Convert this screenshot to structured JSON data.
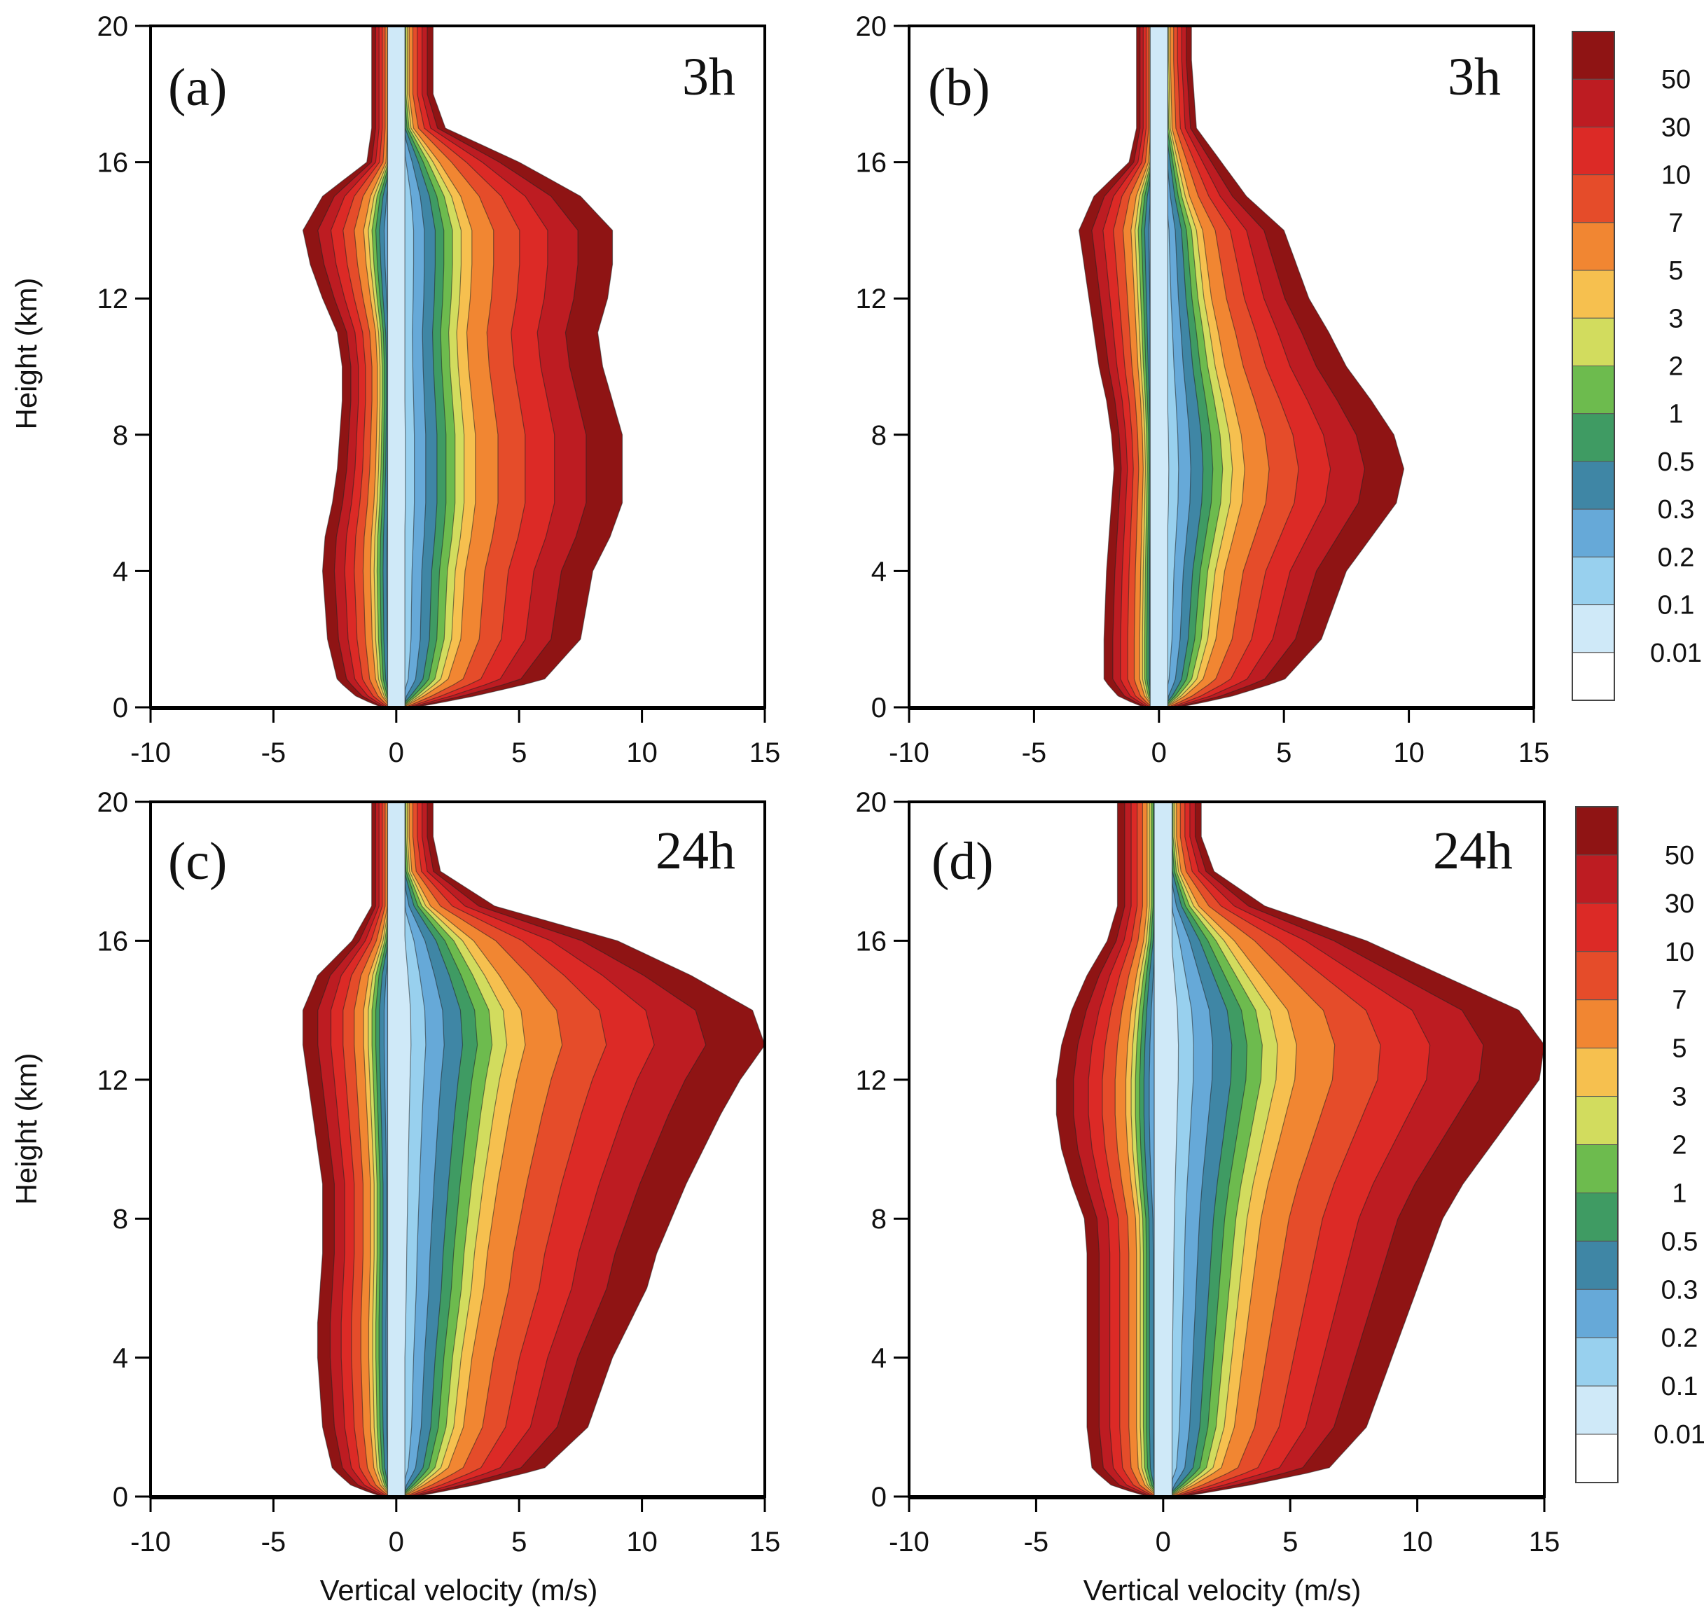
{
  "figure": {
    "x_axis_title": "Vertical velocity (m/s)",
    "y_axis_title": "Height (km)",
    "x_ticks": [
      -10,
      -5,
      0,
      5,
      10,
      15
    ],
    "y_ticks": [
      0,
      4,
      8,
      12,
      16,
      20
    ]
  },
  "chart_data": [
    {
      "type": "heatmap",
      "panel": "(a)",
      "time_label": "3h",
      "xlabel": "",
      "ylabel": "Height (km)",
      "xlim": [
        -10,
        15
      ],
      "ylim": [
        0,
        20
      ],
      "grid": false,
      "profile": {
        "heights": [
          0,
          0.3,
          0.8,
          2,
          4,
          5,
          6,
          7,
          8,
          9,
          10,
          11,
          12,
          13,
          14,
          15,
          16,
          17,
          18,
          19,
          20
        ],
        "left_extent_0_01": [
          -0.6,
          -1.6,
          -2.4,
          -2.8,
          -3.0,
          -2.9,
          -2.6,
          -2.4,
          -2.3,
          -2.2,
          -2.2,
          -2.4,
          -3.0,
          -3.5,
          -3.8,
          -3.0,
          -1.2,
          -1.0,
          -1.0,
          -1.0,
          -1.0
        ],
        "right_extent_0_01": [
          0.8,
          3.0,
          6.0,
          7.5,
          8.0,
          8.7,
          9.2,
          9.2,
          9.2,
          8.8,
          8.4,
          8.2,
          8.6,
          8.8,
          8.8,
          7.5,
          5.0,
          2.0,
          1.5,
          1.5,
          1.5
        ]
      }
    },
    {
      "type": "heatmap",
      "panel": "(b)",
      "time_label": "3h",
      "xlabel": "",
      "ylabel": "",
      "xlim": [
        -10,
        15
      ],
      "ylim": [
        0,
        20
      ],
      "grid": false,
      "profile": {
        "heights": [
          0,
          0.3,
          0.8,
          2,
          4,
          5,
          6,
          7,
          8,
          9,
          10,
          11,
          12,
          13,
          14,
          15,
          16,
          17,
          18,
          19,
          20
        ],
        "left_extent_0_01": [
          -0.6,
          -1.6,
          -2.2,
          -2.2,
          -2.1,
          -2.0,
          -1.9,
          -1.8,
          -1.9,
          -2.1,
          -2.4,
          -2.6,
          -2.8,
          -3.0,
          -3.2,
          -2.6,
          -1.2,
          -0.9,
          -0.9,
          -0.9,
          -0.9
        ],
        "right_extent_0_01": [
          0.8,
          2.8,
          5.0,
          6.5,
          7.5,
          8.5,
          9.5,
          9.8,
          9.4,
          8.5,
          7.5,
          6.8,
          6.0,
          5.5,
          5.0,
          3.5,
          2.5,
          1.5,
          1.4,
          1.3,
          1.3
        ]
      }
    },
    {
      "type": "heatmap",
      "panel": "(c)",
      "time_label": "24h",
      "xlabel": "Vertical velocity (m/s)",
      "ylabel": "Height (km)",
      "xlim": [
        -10,
        15
      ],
      "ylim": [
        0,
        20
      ],
      "grid": false,
      "profile": {
        "heights": [
          0,
          0.3,
          0.8,
          2,
          4,
          5,
          6,
          7,
          8,
          9,
          10,
          11,
          12,
          13,
          14,
          15,
          16,
          17,
          18,
          19,
          20
        ],
        "left_extent_0_01": [
          -0.6,
          -1.8,
          -2.6,
          -3.0,
          -3.2,
          -3.2,
          -3.1,
          -3.0,
          -3.0,
          -3.0,
          -3.2,
          -3.4,
          -3.6,
          -3.8,
          -3.8,
          -3.2,
          -1.8,
          -1.0,
          -1.0,
          -1.0,
          -1.0
        ],
        "right_extent_0_01": [
          0.8,
          3.0,
          6.0,
          7.8,
          8.8,
          9.5,
          10.2,
          10.6,
          11.2,
          11.8,
          12.5,
          13.2,
          14.0,
          15.0,
          14.5,
          12.0,
          9.0,
          4.0,
          1.8,
          1.5,
          1.5
        ]
      }
    },
    {
      "type": "heatmap",
      "panel": "(d)",
      "time_label": "24h",
      "xlabel": "Vertical velocity (m/s)",
      "ylabel": "",
      "xlim": [
        -10,
        15
      ],
      "ylim": [
        0,
        20
      ],
      "grid": false,
      "profile": {
        "heights": [
          0,
          0.3,
          0.8,
          2,
          4,
          5,
          6,
          7,
          8,
          9,
          10,
          11,
          12,
          13,
          14,
          15,
          16,
          17,
          18,
          19,
          20
        ],
        "left_extent_0_01": [
          -0.6,
          -2.0,
          -2.8,
          -3.0,
          -3.0,
          -3.0,
          -3.0,
          -3.0,
          -3.1,
          -3.6,
          -4.0,
          -4.2,
          -4.2,
          -4.0,
          -3.6,
          -3.0,
          -2.2,
          -1.8,
          -1.8,
          -1.8,
          -1.8
        ],
        "right_extent_0_01": [
          0.8,
          3.2,
          6.5,
          8.0,
          9.0,
          9.5,
          10.0,
          10.5,
          11.0,
          11.8,
          12.8,
          13.8,
          14.8,
          15.0,
          14.0,
          11.0,
          8.0,
          4.0,
          2.0,
          1.5,
          1.5
        ]
      }
    }
  ],
  "colorbar": {
    "labels": [
      "50",
      "30",
      "10",
      "7",
      "5",
      "3",
      "2",
      "1",
      "0.5",
      "0.3",
      "0.2",
      "0.1",
      "0.01"
    ],
    "colors": [
      "#8f1414",
      "#bd1c22",
      "#dc2a26",
      "#e54c2a",
      "#f18632",
      "#f6c04f",
      "#d2dc5e",
      "#6dbb4e",
      "#3f9b63",
      "#3f86a5",
      "#66a9d8",
      "#98d0ee",
      "#cfe9f8",
      "#ffffff"
    ]
  }
}
